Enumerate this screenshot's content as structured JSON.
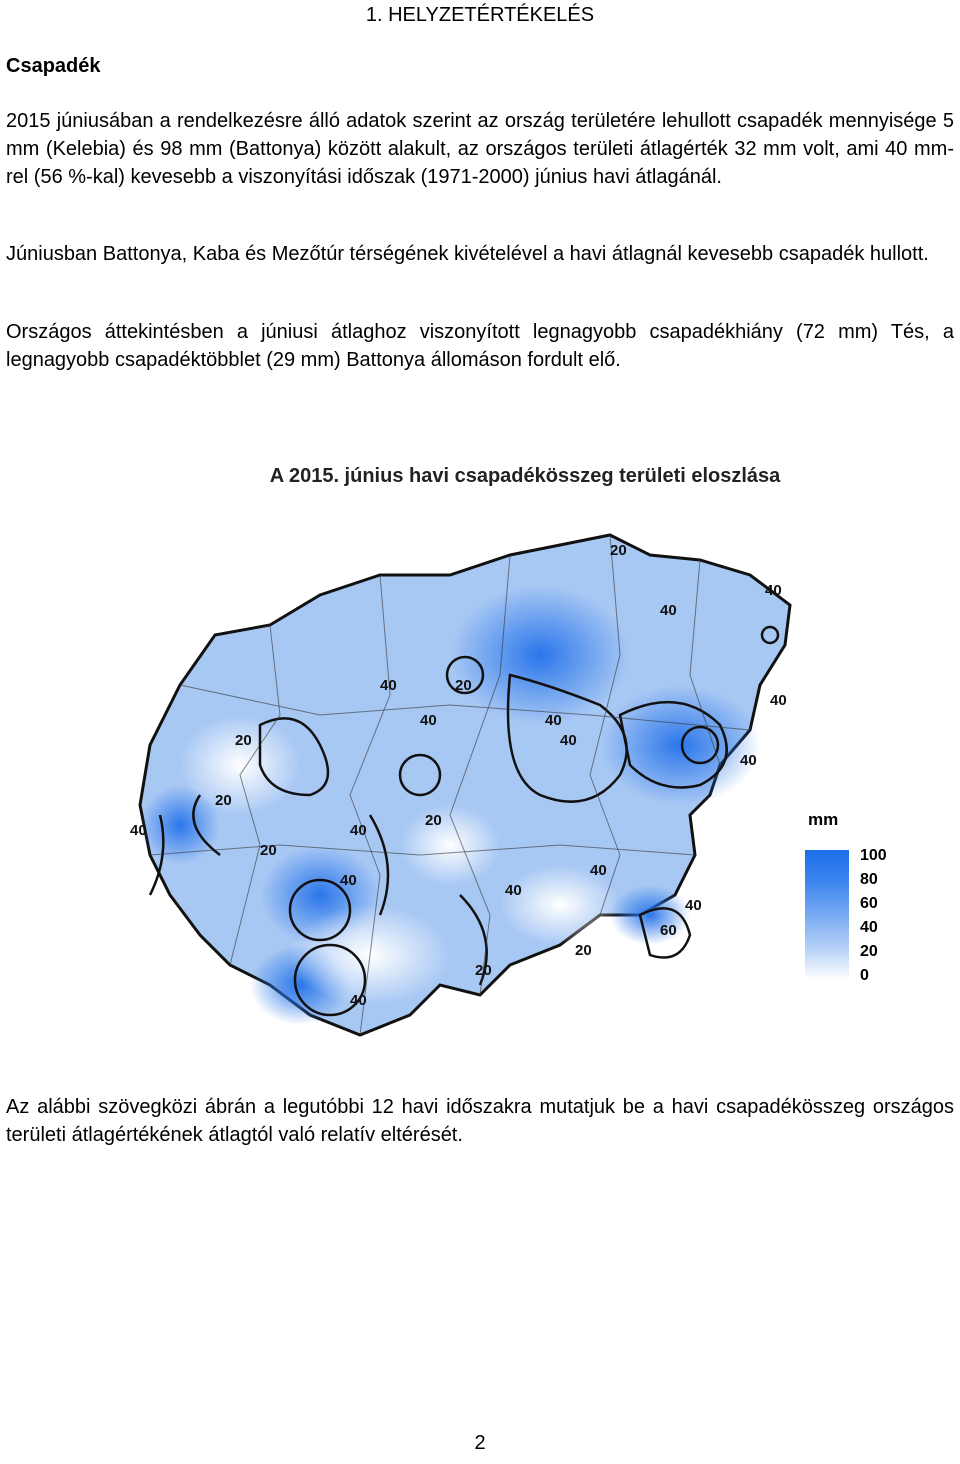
{
  "heading": "1. HELYZETÉRTÉKELÉS",
  "section_title": "Csapadék",
  "paragraphs": {
    "p1": "2015 júniusában a rendelkezésre álló adatok szerint az ország területére lehullott csapadék mennyisége 5 mm (Kelebia) és 98 mm (Battonya) között alakult, az országos területi átlagérték 32 mm volt, ami 40 mm-rel (56 %-kal) kevesebb a viszonyítási időszak (1971-2000) június havi átlagánál.",
    "p2": "Júniusban Battonya, Kaba és Mezőtúr térségének kivételével a havi átlagnál kevesebb csapadék hullott.",
    "p3": "Országos áttekintésben a júniusi átlaghoz viszonyított legnagyobb csapadékhiány (72 mm) Tés, a legnagyobb csapadéktöbblet (29 mm) Battonya állomáson fordult elő.",
    "p4": "Az alábbi szövegközi ábrán a legutóbbi 12 havi időszakra mutatjuk be a havi csapadékösszeg országos területi átlagértékének átlagtól való relatív eltérését."
  },
  "figure": {
    "title": "A 2015. június havi csapadékösszeg területi eloszlása",
    "legend_unit": "mm",
    "legend_ticks": [
      "100",
      "80",
      "60",
      "40",
      "20",
      "0"
    ],
    "contour_labels": [
      "20",
      "40",
      "40",
      "20",
      "40",
      "20",
      "40",
      "40",
      "20",
      "40",
      "40",
      "20",
      "40",
      "40",
      "40",
      "20",
      "40",
      "40",
      "60",
      "40",
      "20",
      "20",
      "40",
      "40"
    ],
    "colors": {
      "high": "#1a6ee8",
      "mid": "#78aaf2",
      "low": "#ffffff",
      "contour": "#111111"
    }
  },
  "page_number": "2"
}
